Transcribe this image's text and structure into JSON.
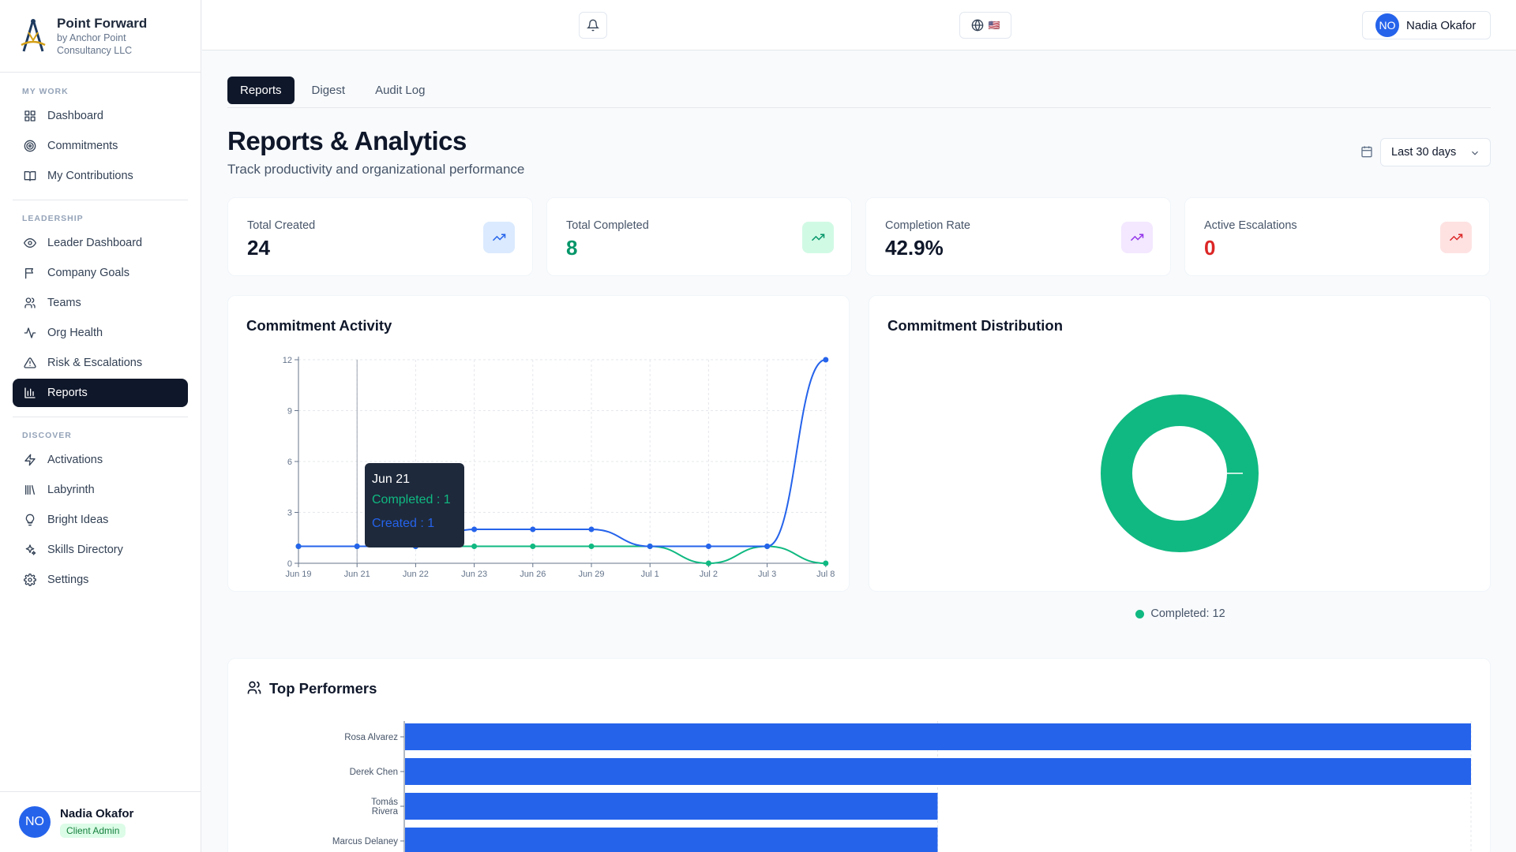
{
  "brand": {
    "title": "Point Forward",
    "subtitle": "by Anchor Point Consultancy LLC"
  },
  "sidebar": {
    "sections": [
      {
        "heading": "MY WORK",
        "items": [
          {
            "label": "Dashboard",
            "icon": "grid-icon"
          },
          {
            "label": "Commitments",
            "icon": "target-icon"
          },
          {
            "label": "My Contributions",
            "icon": "book-icon"
          }
        ]
      },
      {
        "heading": "LEADERSHIP",
        "items": [
          {
            "label": "Leader Dashboard",
            "icon": "eye-icon"
          },
          {
            "label": "Company Goals",
            "icon": "flag-icon"
          },
          {
            "label": "Teams",
            "icon": "users-icon"
          },
          {
            "label": "Org Health",
            "icon": "activity-icon"
          },
          {
            "label": "Risk & Escalations",
            "icon": "warning-icon"
          },
          {
            "label": "Reports",
            "icon": "bar-chart-icon",
            "active": true
          }
        ]
      },
      {
        "heading": "DISCOVER",
        "items": [
          {
            "label": "Activations",
            "icon": "zap-icon"
          },
          {
            "label": "Labyrinth",
            "icon": "library-icon"
          },
          {
            "label": "Bright Ideas",
            "icon": "lightbulb-icon"
          },
          {
            "label": "Skills Directory",
            "icon": "sparkles-icon"
          },
          {
            "label": "Settings",
            "icon": "gear-icon"
          }
        ]
      }
    ],
    "user": {
      "initials": "NO",
      "name": "Nadia Okafor",
      "role": "Client Admin"
    }
  },
  "topbar": {
    "language_flag": "🇺🇸",
    "user_initials": "NO",
    "user_name": "Nadia Okafor"
  },
  "tabs": [
    {
      "label": "Reports",
      "active": true
    },
    {
      "label": "Digest"
    },
    {
      "label": "Audit Log"
    }
  ],
  "page": {
    "title": "Reports & Analytics",
    "subtitle": "Track productivity and organizational performance",
    "range": "Last 30 days"
  },
  "stats": [
    {
      "label": "Total Created",
      "value": "24",
      "color": "#0f172a",
      "icon_bg": "#dbeafe",
      "icon_color": "#2563eb"
    },
    {
      "label": "Total Completed",
      "value": "8",
      "color": "#059669",
      "icon_bg": "#d1fae5",
      "icon_color": "#059669"
    },
    {
      "label": "Completion Rate",
      "value": "42.9%",
      "color": "#0f172a",
      "icon_bg": "#f3e8ff",
      "icon_color": "#9333ea"
    },
    {
      "label": "Active Escalations",
      "value": "0",
      "color": "#dc2626",
      "icon_bg": "#fee2e2",
      "icon_color": "#dc2626"
    }
  ],
  "activity": {
    "title": "Commitment Activity",
    "tooltip": {
      "date": "Jun 21",
      "completed": "Completed : 1",
      "created": "Created : 1"
    }
  },
  "distribution": {
    "title": "Commitment Distribution",
    "legend": "Completed: 12"
  },
  "performers": {
    "title": "Top Performers"
  },
  "chart_data": [
    {
      "type": "line",
      "title": "Commitment Activity",
      "x": [
        "Jun 19",
        "Jun 21",
        "Jun 22",
        "Jun 23",
        "Jun 26",
        "Jun 29",
        "Jul 1",
        "Jul 2",
        "Jul 3",
        "Jul 8"
      ],
      "series": [
        {
          "name": "Created",
          "color": "#2563eb",
          "values": [
            1,
            1,
            1,
            2,
            2,
            2,
            1,
            1,
            1,
            12
          ]
        },
        {
          "name": "Completed",
          "color": "#10b981",
          "values": [
            1,
            1,
            1,
            1,
            1,
            1,
            1,
            0,
            1,
            0
          ]
        }
      ],
      "yticks": [
        0,
        3,
        6,
        9,
        12
      ],
      "ylim": [
        0,
        12
      ],
      "grid": true
    },
    {
      "type": "pie",
      "title": "Commitment Distribution",
      "slices": [
        {
          "name": "Completed",
          "value": 12,
          "color": "#10b981"
        }
      ],
      "legend": "bottom"
    },
    {
      "type": "bar",
      "title": "Top Performers",
      "orientation": "horizontal",
      "categories": [
        "Rosa Alvarez",
        "Derek Chen",
        "Tomás Rivera",
        "Marcus Delaney"
      ],
      "values": [
        2,
        2,
        1,
        1
      ],
      "xlim": [
        0,
        2
      ],
      "color": "#2563eb"
    }
  ]
}
